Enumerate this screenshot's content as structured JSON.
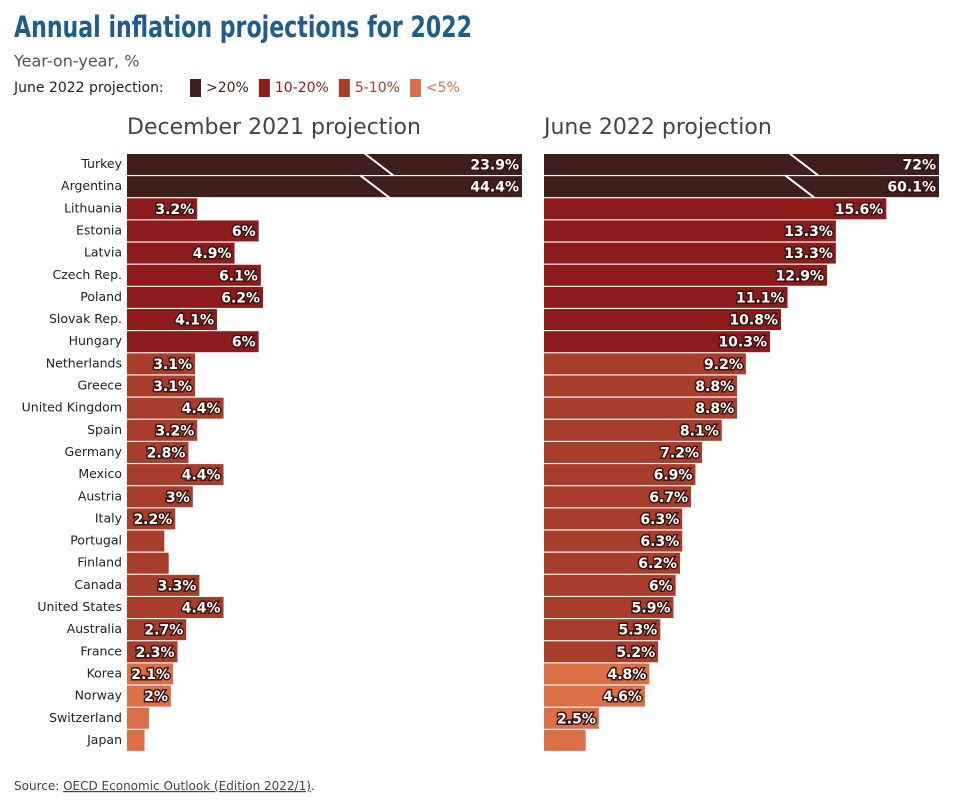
{
  "chart_data": {
    "type": "bar",
    "title": "Annual inflation projections for 2022",
    "subtitle": "Year-on-year, %",
    "legend": {
      "title": "June 2022 projection:",
      "items": [
        {
          "label": ">20%",
          "color": "#3e1f1c"
        },
        {
          "label": "10-20%",
          "color": "#8e1b1b"
        },
        {
          "label": "5-10%",
          "color": "#a83d2b"
        },
        {
          "label": "<5%",
          "color": "#dc6f46"
        }
      ]
    },
    "categories": [
      "Turkey",
      "Argentina",
      "Lithuania",
      "Estonia",
      "Latvia",
      "Czech Rep.",
      "Poland",
      "Slovak Rep.",
      "Hungary",
      "Netherlands",
      "Greece",
      "United Kingdom",
      "Spain",
      "Germany",
      "Mexico",
      "Austria",
      "Italy",
      "Portugal",
      "Finland",
      "Canada",
      "United States",
      "Australia",
      "France",
      "Korea",
      "Norway",
      "Switzerland",
      "Japan"
    ],
    "colors": [
      "#3e1f1c",
      "#3e1f1c",
      "#8e1b1b",
      "#8e1b1b",
      "#8e1b1b",
      "#8e1b1b",
      "#8e1b1b",
      "#8e1b1b",
      "#8e1b1b",
      "#a83d2b",
      "#a83d2b",
      "#a83d2b",
      "#a83d2b",
      "#a83d2b",
      "#a83d2b",
      "#a83d2b",
      "#a83d2b",
      "#a83d2b",
      "#a83d2b",
      "#a83d2b",
      "#a83d2b",
      "#a83d2b",
      "#a83d2b",
      "#dc6f46",
      "#dc6f46",
      "#dc6f46",
      "#dc6f46"
    ],
    "xlim": [
      0,
      18
    ],
    "series": [
      {
        "name": "December 2021 projection",
        "values": [
          23.9,
          44.4,
          3.2,
          6,
          4.9,
          6.1,
          6.2,
          4.1,
          6,
          3.1,
          3.1,
          4.4,
          3.2,
          2.8,
          4.4,
          3,
          2.2,
          1.7,
          1.9,
          3.3,
          4.4,
          2.7,
          2.3,
          2.1,
          2,
          1.0,
          0.8
        ],
        "value_labels": [
          "23.9%",
          "44.4%",
          "3.2%",
          "6%",
          "4.9%",
          "6.1%",
          "6.2%",
          "4.1%",
          "6%",
          "3.1%",
          "3.1%",
          "4.4%",
          "3.2%",
          "2.8%",
          "4.4%",
          "3%",
          "2.2%",
          null,
          null,
          "3.3%",
          "4.4%",
          "2.7%",
          "2.3%",
          "2.1%",
          "2%",
          null,
          null
        ]
      },
      {
        "name": "June 2022 projection",
        "values": [
          72,
          60.1,
          15.6,
          13.3,
          13.3,
          12.9,
          11.1,
          10.8,
          10.3,
          9.2,
          8.8,
          8.8,
          8.1,
          7.2,
          6.9,
          6.7,
          6.3,
          6.3,
          6.2,
          6,
          5.9,
          5.3,
          5.2,
          4.8,
          4.6,
          2.5,
          1.9
        ],
        "value_labels": [
          "72%",
          "60.1%",
          "15.6%",
          "13.3%",
          "13.3%",
          "12.9%",
          "11.1%",
          "10.8%",
          "10.3%",
          "9.2%",
          "8.8%",
          "8.8%",
          "8.1%",
          "7.2%",
          "6.9%",
          "6.7%",
          "6.3%",
          "6.3%",
          "6.2%",
          "6%",
          "5.9%",
          "5.3%",
          "5.2%",
          "4.8%",
          "4.6%",
          "2.5%",
          null
        ]
      }
    ],
    "source": {
      "prefix": "Source:",
      "link": "OECD Economic Outlook (Edition 2022/1)",
      "suffix": "."
    }
  }
}
